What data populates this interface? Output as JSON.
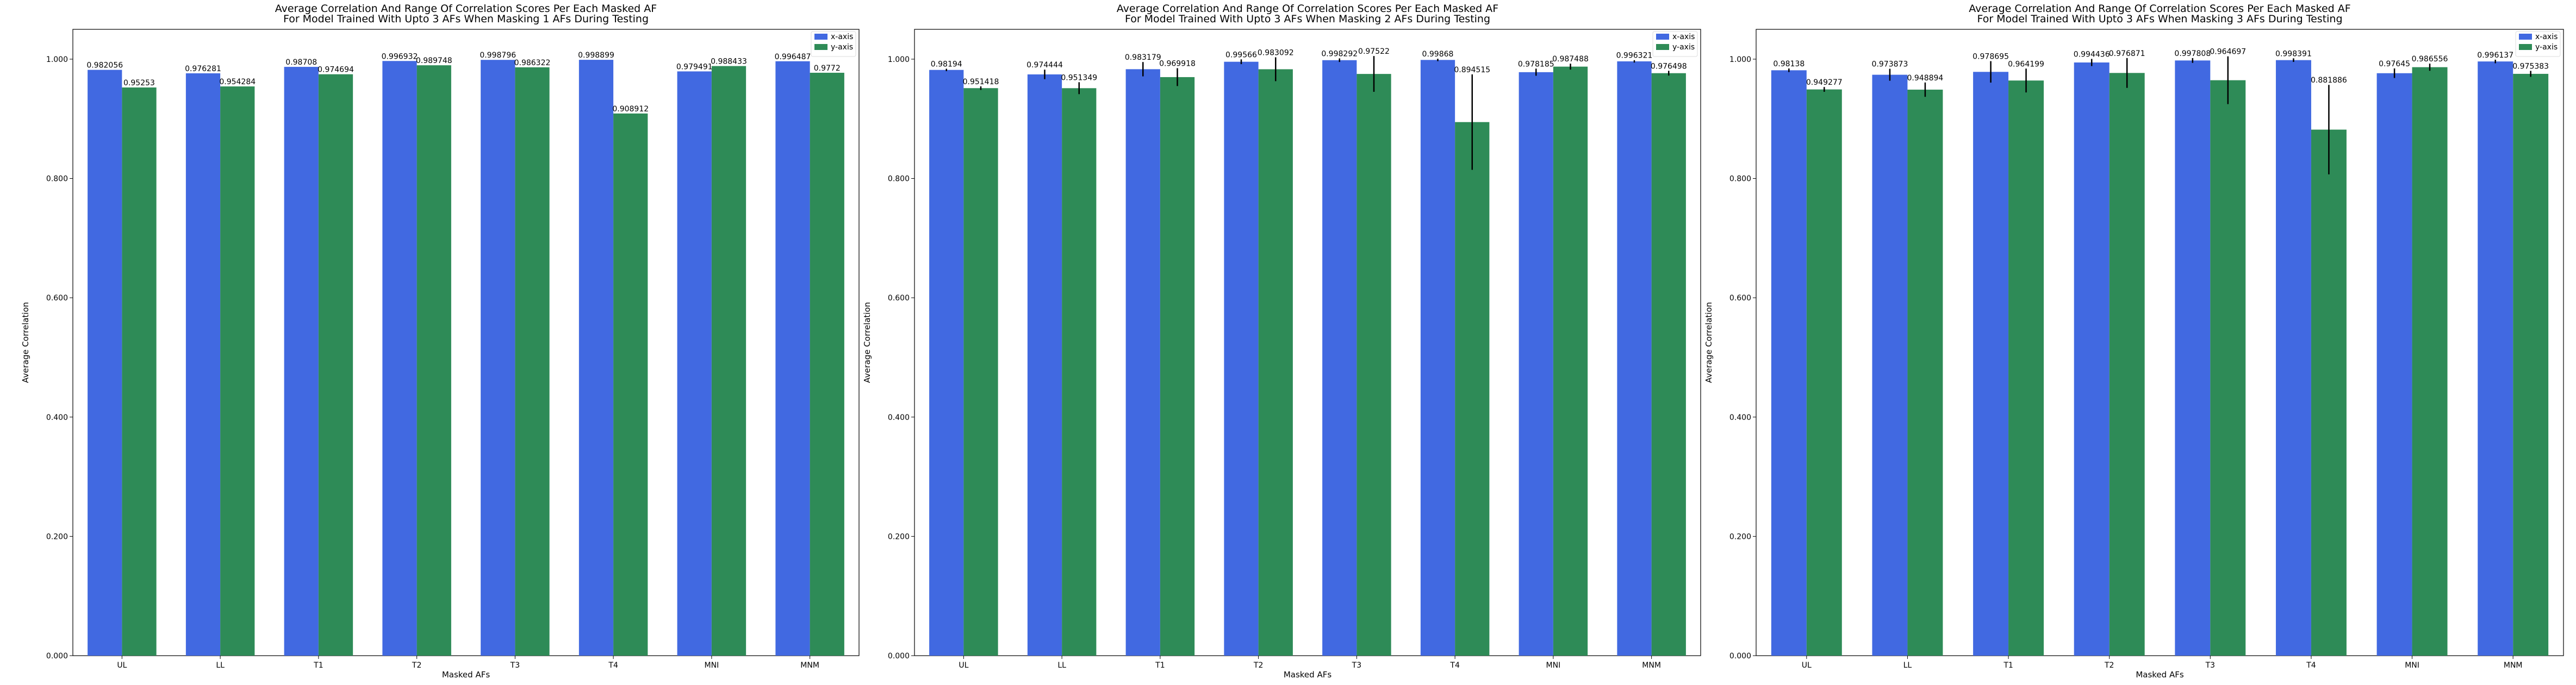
{
  "colors": {
    "x_axis": "#4169e1",
    "y_axis": "#2e8b57",
    "error_bar": "#000000"
  },
  "chart_data": [
    {
      "type": "bar",
      "title": [
        "Average Correlation And Range Of Correlation Scores Per Each Masked AF",
        "For Model Trained With Upto 3 AFs When Masking 1 AFs During Testing"
      ],
      "xlabel": "Masked AFs",
      "ylabel": "Average Correlation",
      "ylim": [
        0,
        1.05
      ],
      "yticks": [
        "0.000",
        "0.200",
        "0.400",
        "0.600",
        "0.800",
        "1.000"
      ],
      "categories": [
        "UL",
        "LL",
        "T1",
        "T2",
        "T3",
        "T4",
        "MNI",
        "MNM"
      ],
      "legend": "top-right",
      "series": [
        {
          "name": "x-axis",
          "color": "#4169e1",
          "values": [
            0.982056,
            0.976281,
            0.98708,
            0.996932,
            0.998796,
            0.998899,
            0.979491,
            0.996487
          ],
          "labels": [
            "0.982056",
            "0.976281",
            "0.98708",
            "0.996932",
            "0.998796",
            "0.998899",
            "0.979491",
            "0.996487"
          ],
          "err": [
            0,
            0,
            0,
            0,
            0,
            0,
            0,
            0
          ]
        },
        {
          "name": "y-axis",
          "color": "#2e8b57",
          "values": [
            0.95253,
            0.954284,
            0.974694,
            0.989748,
            0.986322,
            0.908912,
            0.988433,
            0.9772
          ],
          "labels": [
            "0.95253",
            "0.954284",
            "0.974694",
            "0.989748",
            "0.986322",
            "0.908912",
            "0.988433",
            "0.9772"
          ],
          "err": [
            0,
            0,
            0,
            0,
            0,
            0,
            0,
            0
          ]
        }
      ]
    },
    {
      "type": "bar",
      "title": [
        "Average Correlation And Range Of Correlation Scores Per Each Masked AF",
        "For Model Trained With Upto 3 AFs When Masking 2 AFs During Testing"
      ],
      "xlabel": "Masked AFs",
      "ylabel": "Average Correlation",
      "ylim": [
        0,
        1.05
      ],
      "yticks": [
        "0.000",
        "0.200",
        "0.400",
        "0.600",
        "0.800",
        "1.000"
      ],
      "categories": [
        "UL",
        "LL",
        "T1",
        "T2",
        "T3",
        "T4",
        "MNI",
        "MNM"
      ],
      "legend": "top-right",
      "series": [
        {
          "name": "x-axis",
          "color": "#4169e1",
          "values": [
            0.98194,
            0.974444,
            0.983179,
            0.99566,
            0.998292,
            0.99868,
            0.978185,
            0.996321
          ],
          "labels": [
            "0.98194",
            "0.974444",
            "0.983179",
            "0.99566",
            "0.998292",
            "0.99868",
            "0.978185",
            "0.996321"
          ],
          "err": [
            0.002,
            0.008,
            0.012,
            0.004,
            0.003,
            0.002,
            0.006,
            0.002
          ]
        },
        {
          "name": "y-axis",
          "color": "#2e8b57",
          "values": [
            0.951418,
            0.951349,
            0.969918,
            0.983092,
            0.97522,
            0.894515,
            0.987488,
            0.976498
          ],
          "labels": [
            "0.951418",
            "0.951349",
            "0.969918",
            "0.983092",
            "0.97522",
            "0.894515",
            "0.987488",
            "0.976498"
          ],
          "err": [
            0.003,
            0.01,
            0.015,
            0.02,
            0.03,
            0.08,
            0.005,
            0.004
          ]
        }
      ]
    },
    {
      "type": "bar",
      "title": [
        "Average Correlation And Range Of Correlation Scores Per Each Masked AF",
        "For Model Trained With Upto 3 AFs When Masking 3 AFs During Testing"
      ],
      "xlabel": "Masked AFs",
      "ylabel": "Average Correlation",
      "ylim": [
        0,
        1.05
      ],
      "yticks": [
        "0.000",
        "0.200",
        "0.400",
        "0.600",
        "0.800",
        "1.000"
      ],
      "categories": [
        "UL",
        "LL",
        "T1",
        "T2",
        "T3",
        "T4",
        "MNI",
        "MNM"
      ],
      "legend": "top-right",
      "series": [
        {
          "name": "x-axis",
          "color": "#4169e1",
          "values": [
            0.98138,
            0.973873,
            0.978695,
            0.994436,
            0.997808,
            0.998391,
            0.97645,
            0.996137
          ],
          "labels": [
            "0.98138",
            "0.973873",
            "0.978695",
            "0.994436",
            "0.997808",
            "0.998391",
            "0.97645",
            "0.996137"
          ],
          "err": [
            0.003,
            0.01,
            0.018,
            0.006,
            0.004,
            0.003,
            0.008,
            0.003
          ]
        },
        {
          "name": "y-axis",
          "color": "#2e8b57",
          "values": [
            0.949277,
            0.948894,
            0.964199,
            0.976871,
            0.964697,
            0.881886,
            0.986556,
            0.975383
          ],
          "labels": [
            "0.949277",
            "0.948894",
            "0.964199",
            "0.976871",
            "0.964697",
            "0.881886",
            "0.986556",
            "0.975383"
          ],
          "err": [
            0.004,
            0.012,
            0.02,
            0.025,
            0.04,
            0.075,
            0.006,
            0.005
          ]
        }
      ]
    }
  ]
}
